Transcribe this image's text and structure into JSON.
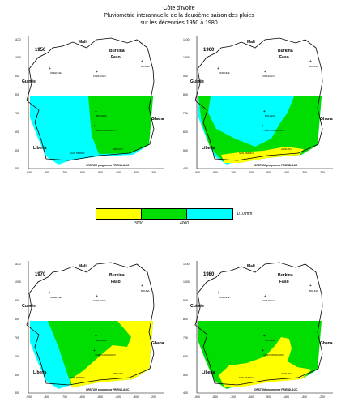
{
  "title": {
    "line1": "Côte d'Ivoire",
    "line2": "Pluviométrie interannuelle de la deuxième saison des pluies",
    "line3": "sur les décennies 1950 à 1980"
  },
  "colors": {
    "yellow": "#ffff00",
    "green": "#00dd00",
    "cyan": "#00ffff",
    "outline": "#000000"
  },
  "legend": {
    "unit": "1/10 mm",
    "break1": "3000",
    "break2": "4000",
    "classes": [
      {
        "range": "< 3000",
        "color": "#ffff00"
      },
      {
        "range": "3000 - 4000",
        "color": "#00dd00"
      },
      {
        "range": "> 4000",
        "color": "#00ffff"
      }
    ]
  },
  "map_labels": {
    "mali": "Mali",
    "burkina_1": "Burkina",
    "burkina_2": "Faso",
    "guinee": "Guinée",
    "liberia": "Liberia",
    "ghana": "Ghana",
    "credit": "ORSTOM programme FRIEND-AOC",
    "city_odienne": "ODIENNE",
    "city_korhogo": "KORHOGO",
    "city_bouna": "BOUNA",
    "city_bouake": "BOUAKE",
    "city_yamoussoukro": "YAMOUSSOUKRO",
    "city_sanpedro": "SAN PEDRO",
    "city_abidjan": "ABIDJAN"
  },
  "axes": {
    "x_ticks": [
      "-900",
      "-800",
      "-700",
      "-600",
      "-500",
      "-400",
      "-300",
      "-200"
    ],
    "y_ticks": [
      "1100",
      "1000",
      "900",
      "800",
      "700",
      "600",
      "500",
      "400"
    ]
  },
  "panels": [
    {
      "id": "p1950",
      "year": "1950"
    },
    {
      "id": "p1960",
      "year": "1960"
    },
    {
      "id": "p1970",
      "year": "1970"
    },
    {
      "id": "p1980",
      "year": "1980"
    }
  ]
}
